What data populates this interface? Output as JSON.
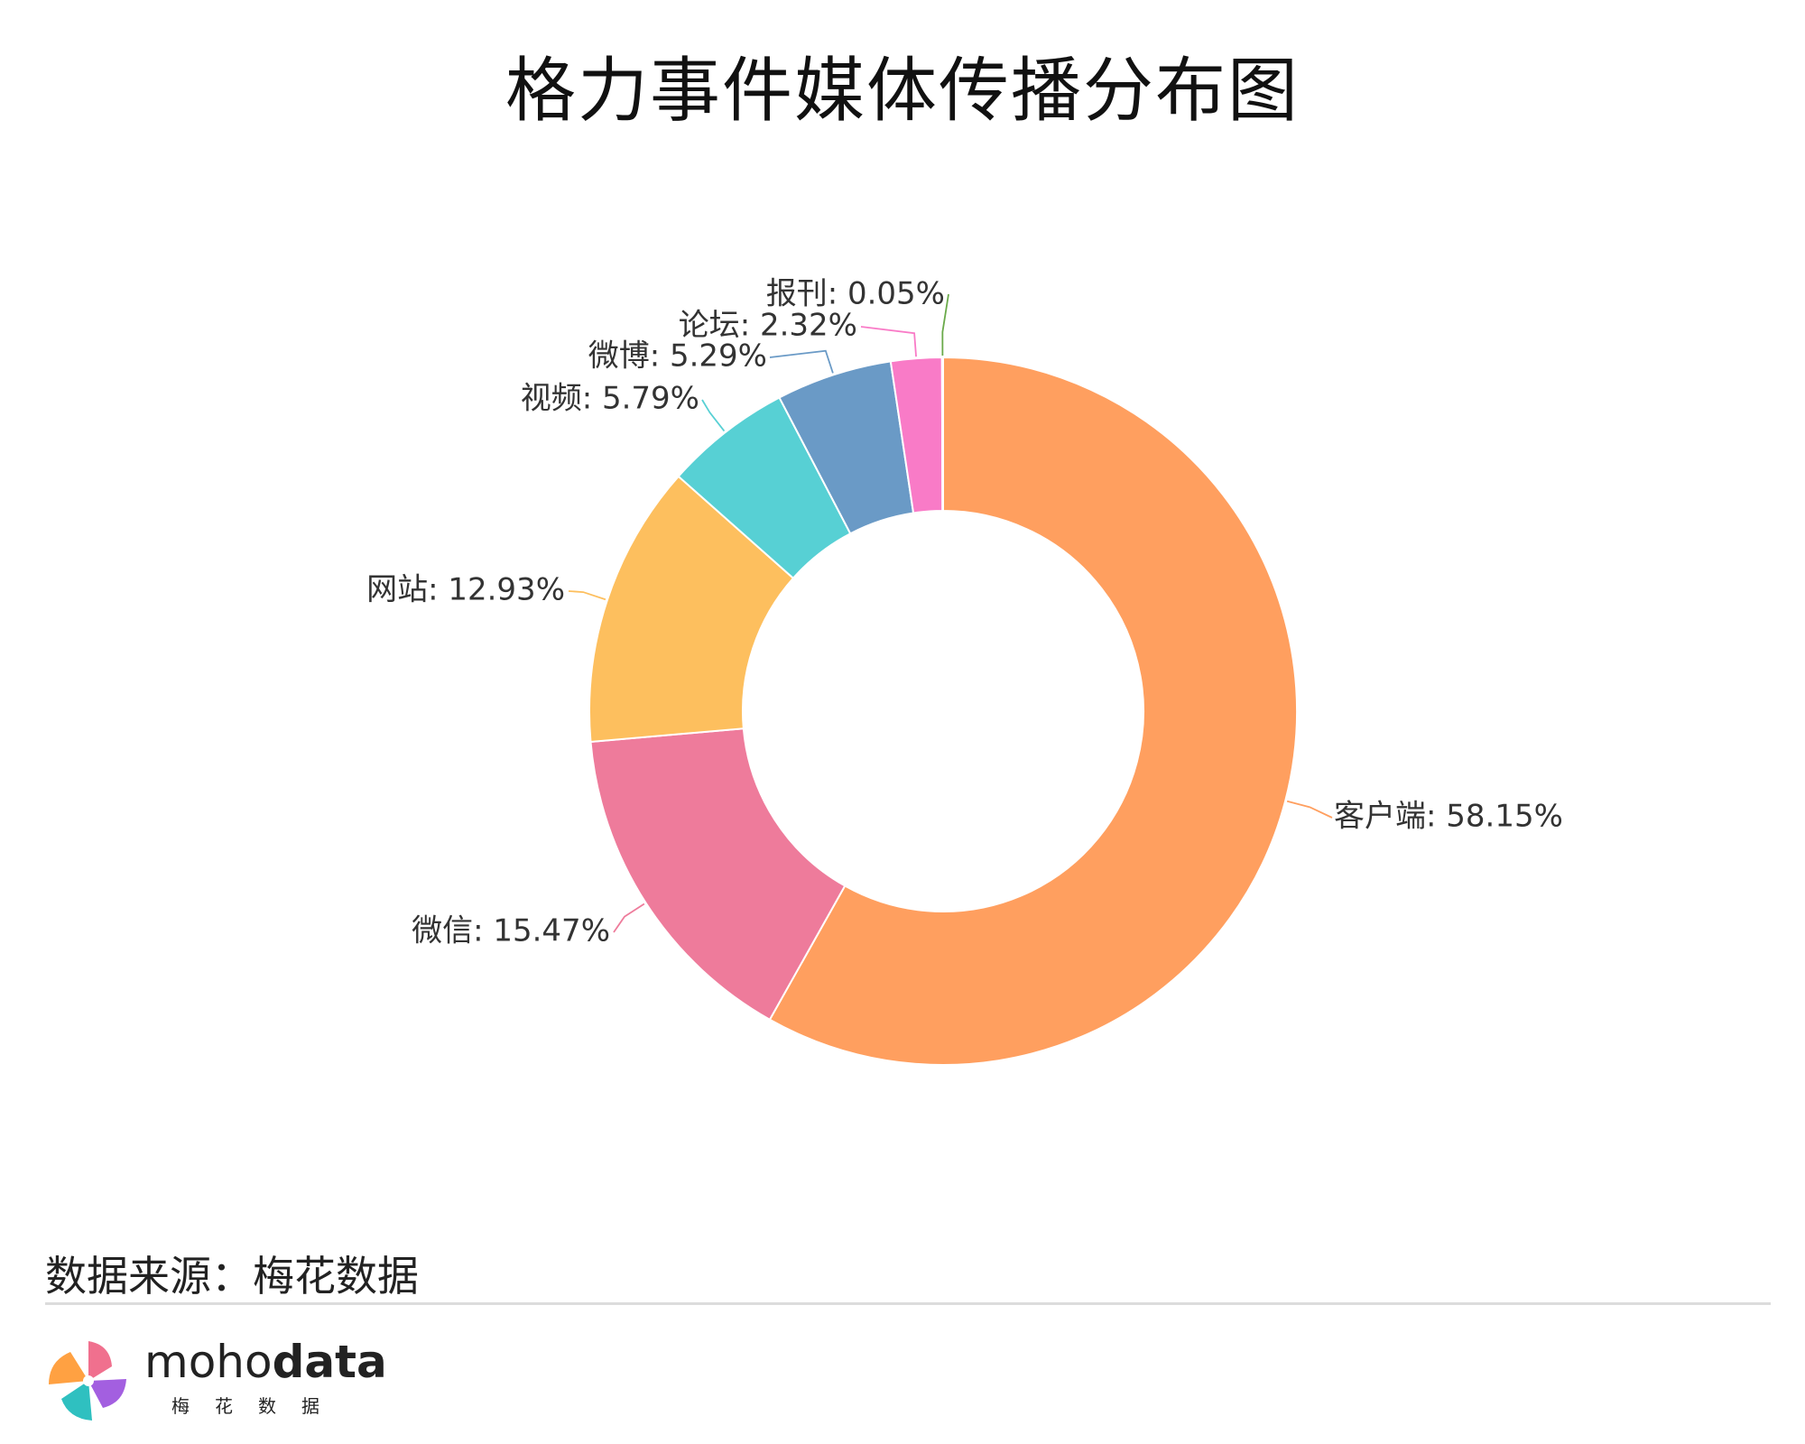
{
  "header": {
    "title": "格力事件媒体传播分布图"
  },
  "chart_data": {
    "type": "pie",
    "title": "格力事件媒体传播分布图",
    "donut": true,
    "slices": [
      {
        "name": "客户端",
        "value": 58.15,
        "label": "客户端: 58.15%",
        "color": "#FF9F5F"
      },
      {
        "name": "微信",
        "value": 15.47,
        "label": "微信: 15.47%",
        "color": "#EE7B9B"
      },
      {
        "name": "网站",
        "value": 12.93,
        "label": "网站: 12.93%",
        "color": "#FDBF5E"
      },
      {
        "name": "视频",
        "value": 5.79,
        "label": "视频: 5.79%",
        "color": "#57D0D4"
      },
      {
        "name": "微博",
        "value": 5.29,
        "label": "微博: 5.29%",
        "color": "#6A9AC6"
      },
      {
        "name": "论坛",
        "value": 2.32,
        "label": "论坛: 2.32%",
        "color": "#F97BC7"
      },
      {
        "name": "报刊",
        "value": 0.05,
        "label": "报刊: 0.05%",
        "color": "#6AAA4A"
      }
    ]
  },
  "footer": {
    "source": "数据来源：梅花数据",
    "brand_prefix": "moho",
    "brand_suffix": "data",
    "brand_sub": "梅花数据"
  }
}
